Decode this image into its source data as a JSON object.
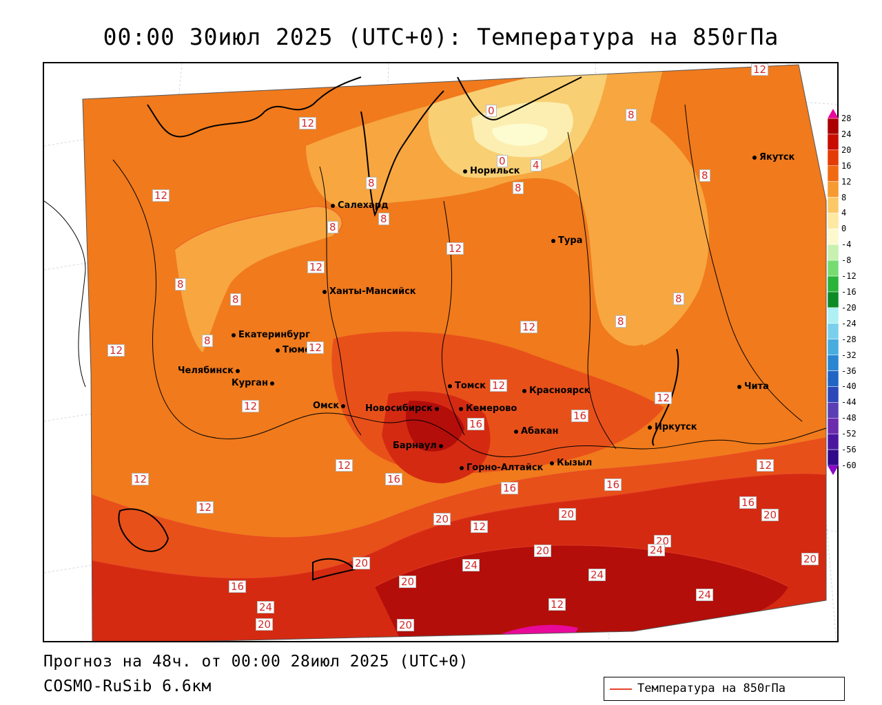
{
  "title": "00:00 30июл 2025 (UTC+0): Температура на 850гПа",
  "forecast_text": "Прогноз на 48ч. от 00:00 28июл 2025 (UTC+0)",
  "model_text": "COSMO-RuSib 6.6км",
  "legend": {
    "label": "Температура на 850гПа",
    "color": "#e8412a"
  },
  "colors": {
    "t_minus4": "#fdfbd0",
    "t0": "#fbeeb0",
    "t4": "#f9cf74",
    "t8": "#f7a640",
    "t12": "#f07a1c",
    "t16": "#e8501a",
    "t20": "#d42a12",
    "t24": "#b30e0a",
    "t28": "#e8089a"
  },
  "colorbar": {
    "labels": [
      "28",
      "24",
      "20",
      "16",
      "12",
      "8",
      "4",
      "0",
      "-4",
      "-8",
      "-12",
      "-16",
      "-20",
      "-24",
      "-28",
      "-32",
      "-36",
      "-40",
      "-44",
      "-48",
      "-52",
      "-56",
      "-60"
    ],
    "colors": [
      "#c1005a",
      "#ab0000",
      "#c80c00",
      "#e43c06",
      "#f16a12",
      "#f79a32",
      "#fbc868",
      "#fde9a2",
      "#fdf9cf",
      "#c8f0b0",
      "#76dc72",
      "#2ab43a",
      "#0e8a26",
      "#aef0f4",
      "#7ad0ec",
      "#48acde",
      "#2a86d2",
      "#2064c4",
      "#2c48b8",
      "#5a40b4",
      "#6c2cae",
      "#4a16a0",
      "#30088a"
    ]
  },
  "cities": [
    {
      "name": "Норильск"
    },
    {
      "name": "Якутск"
    },
    {
      "name": "Салехард"
    },
    {
      "name": "Тура"
    },
    {
      "name": "Ханты-Мансийск"
    },
    {
      "name": "Екатеринбург"
    },
    {
      "name": "Тюмень"
    },
    {
      "name": "Челябинск"
    },
    {
      "name": "Курган"
    },
    {
      "name": "Омск"
    },
    {
      "name": "Новосибирск"
    },
    {
      "name": "Томск"
    },
    {
      "name": "Кемерово"
    },
    {
      "name": "Красноярск"
    },
    {
      "name": "Барнаул"
    },
    {
      "name": "Абакан"
    },
    {
      "name": "Горно-Алтайск"
    },
    {
      "name": "Кызыл"
    },
    {
      "name": "Иркутск"
    },
    {
      "name": "Чита"
    }
  ],
  "isolines": [
    "12",
    "12",
    "12",
    "12",
    "12",
    "12",
    "12",
    "12",
    "12",
    "12",
    "12",
    "12",
    "12",
    "12",
    "12",
    "0",
    "0",
    "4",
    "8",
    "8",
    "8",
    "8",
    "8",
    "8",
    "8",
    "8",
    "8",
    "8",
    "8",
    "16",
    "16",
    "16",
    "16",
    "16",
    "16",
    "16",
    "20",
    "20",
    "20",
    "20",
    "20",
    "20",
    "20",
    "20",
    "20",
    "20",
    "24",
    "24",
    "24",
    "24",
    "24",
    "12",
    "12"
  ]
}
